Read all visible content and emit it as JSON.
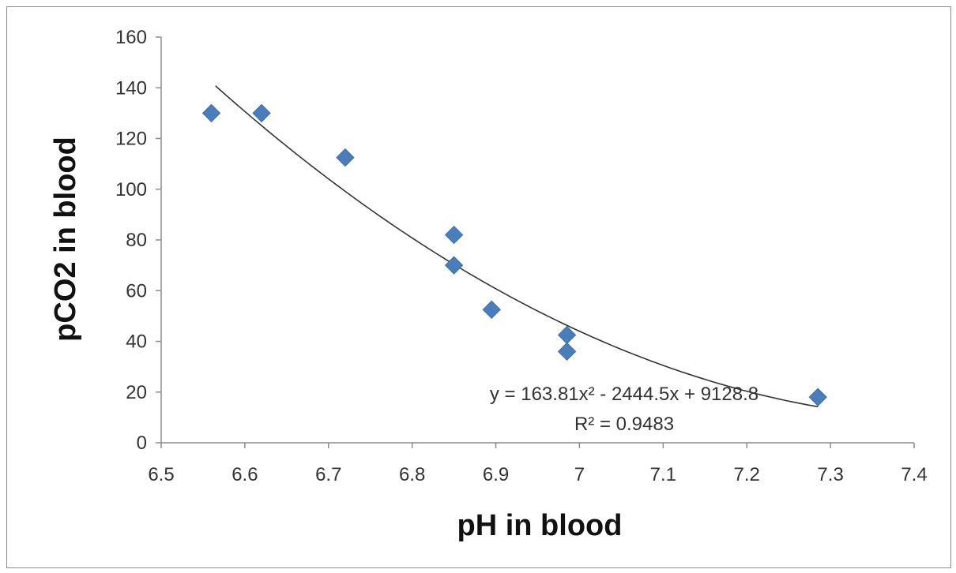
{
  "chart_data": {
    "type": "scatter",
    "xlabel": "pH in blood",
    "ylabel": "pCO2 in blood",
    "xlim": [
      6.5,
      7.4
    ],
    "ylim": [
      0,
      160
    ],
    "x_ticks": [
      "6.5",
      "6.6",
      "6.7",
      "6.8",
      "6.9",
      "7",
      "7.1",
      "7.2",
      "7.3",
      "7.4"
    ],
    "y_ticks": [
      "0",
      "20",
      "40",
      "60",
      "80",
      "100",
      "120",
      "140",
      "160"
    ],
    "grid": false,
    "marker_color": "#4a7ebb",
    "trendline_color": "#333333",
    "series": [
      {
        "points": [
          {
            "x": 6.56,
            "y": 130
          },
          {
            "x": 6.62,
            "y": 130
          },
          {
            "x": 6.72,
            "y": 112.5
          },
          {
            "x": 6.85,
            "y": 82
          },
          {
            "x": 6.85,
            "y": 70
          },
          {
            "x": 6.895,
            "y": 52.5
          },
          {
            "x": 6.985,
            "y": 42.5
          },
          {
            "x": 6.985,
            "y": 36
          },
          {
            "x": 7.285,
            "y": 18
          }
        ]
      }
    ],
    "trendline": {
      "type": "polynomial",
      "coefficients": [
        163.81,
        -2444.5,
        9128.8
      ],
      "x_range": [
        6.565,
        7.285
      ],
      "equation_label": "y = 163.81x² - 2444.5x + 9128.8",
      "r2_label": "R² = 0.9483"
    }
  }
}
